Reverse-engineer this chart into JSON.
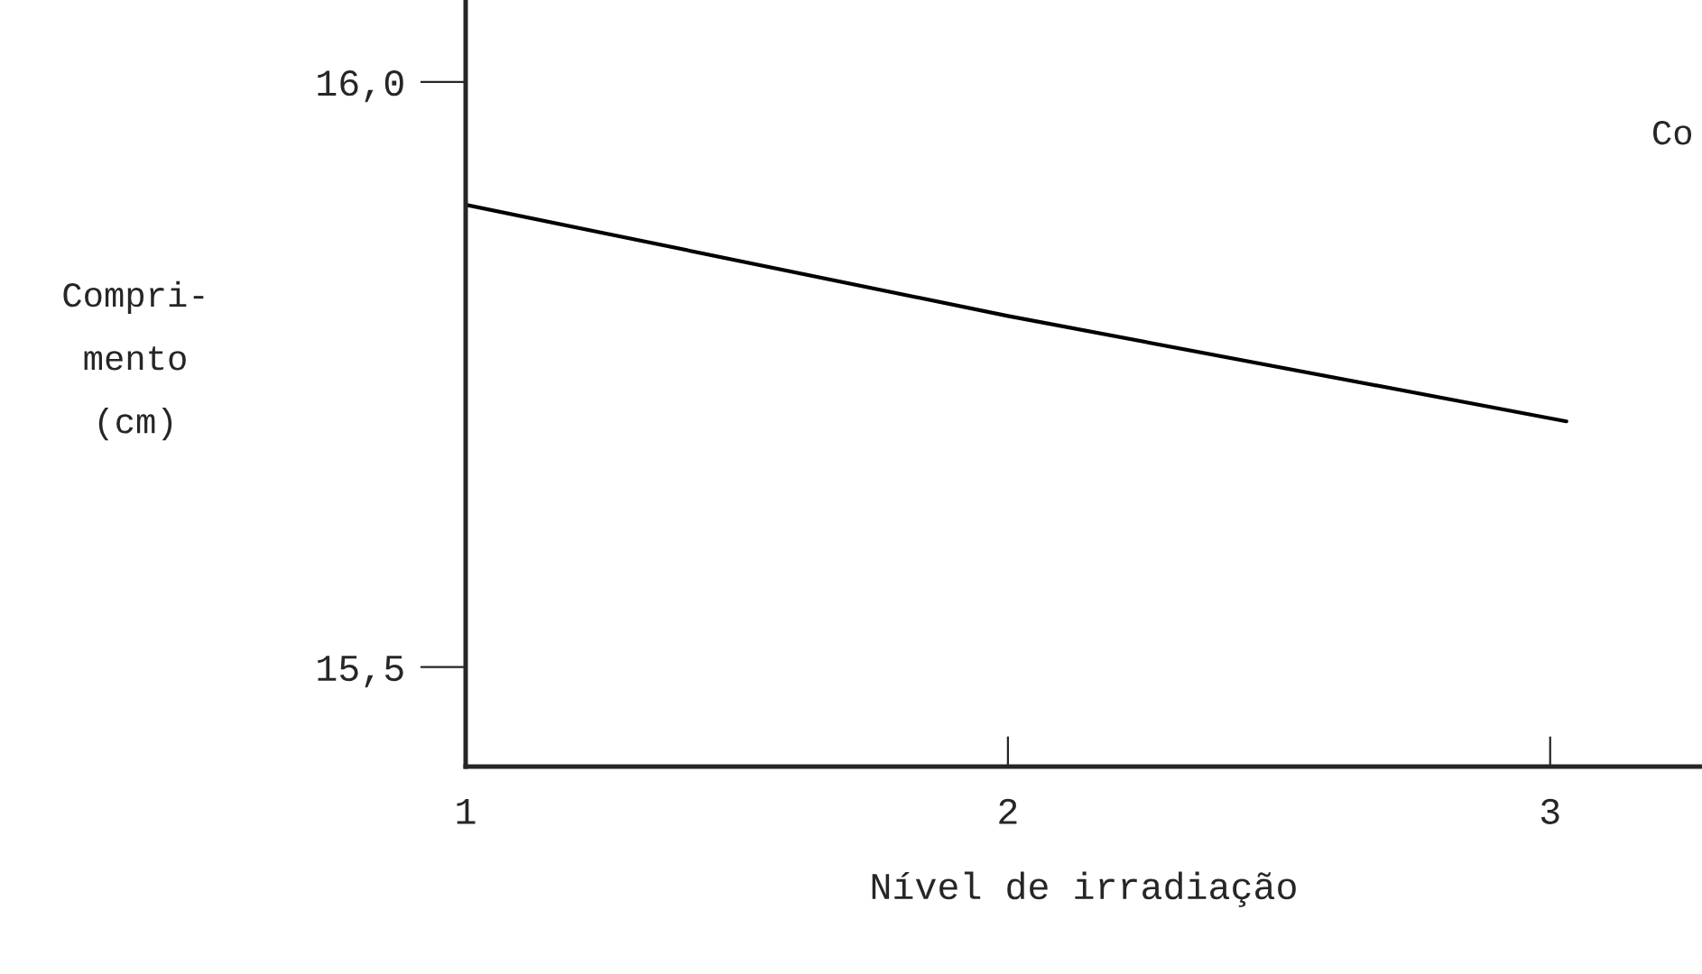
{
  "chart_data": {
    "type": "line",
    "xlabel": "Nível de irradiação",
    "ylabel": "Compri-\nmento\n(cm)",
    "annotations": [
      "Co"
    ],
    "x": [
      1,
      2,
      3.03
    ],
    "series": [
      {
        "color": "#000000",
        "values": [
          15.895,
          15.8,
          15.71
        ]
      }
    ],
    "xlim": [
      1,
      3.28
    ],
    "xticks": [
      1,
      2,
      3
    ],
    "ylim": [
      15.415,
      16.07
    ],
    "yticks": [
      {
        "value": 15.5,
        "label": "15,5"
      },
      {
        "value": 16.0,
        "label": "16,0"
      }
    ],
    "grid": false,
    "legend": false,
    "marker": "none",
    "line_style": "solid"
  }
}
